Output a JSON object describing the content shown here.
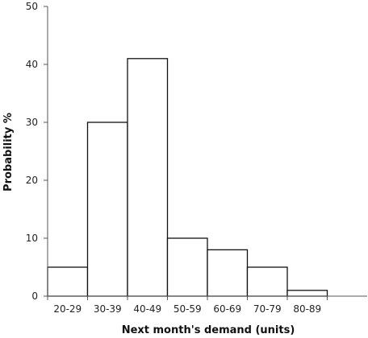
{
  "chart_data": {
    "type": "bar",
    "title": "",
    "xlabel": "Next month's demand (units)",
    "ylabel": "Probability %",
    "categories": [
      "20-29",
      "30-39",
      "40-49",
      "50-59",
      "60-69",
      "70-79",
      "80-89"
    ],
    "values": [
      5,
      30,
      41,
      10,
      8,
      5,
      1
    ],
    "ylim": [
      0,
      50
    ],
    "yticks": [
      0,
      10,
      20,
      30,
      40,
      50
    ],
    "grid": false,
    "legend": "none",
    "bar_fill": "#ffffff",
    "bar_stroke": "#111111"
  }
}
